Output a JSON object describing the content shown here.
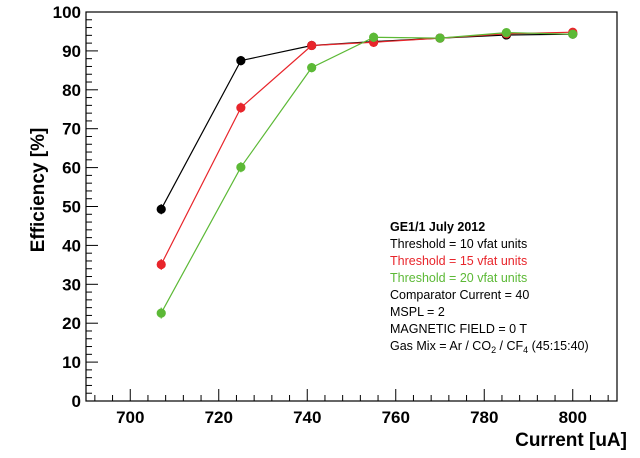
{
  "chart_data": {
    "type": "line",
    "xlabel": "Current [uA]",
    "ylabel": "Efficiency [%]",
    "xlim": [
      690,
      810
    ],
    "ylim": [
      0,
      100
    ],
    "x_ticks": [
      700,
      720,
      740,
      760,
      780,
      800
    ],
    "y_ticks": [
      0,
      10,
      20,
      30,
      40,
      50,
      60,
      70,
      80,
      90,
      100
    ],
    "grid": false,
    "series": [
      {
        "name": "Threshold = 10 vfat units",
        "color": "#000000",
        "x": [
          707,
          725,
          741,
          755,
          770,
          785,
          800
        ],
        "y": [
          49.3,
          87.5,
          91.4,
          92.4,
          93.3,
          94.1,
          94.3
        ],
        "err": [
          1.3,
          1.2,
          1.0,
          1.0,
          0.8,
          0.8,
          0.8
        ]
      },
      {
        "name": "Threshold = 15 vfat units",
        "color": "#e8252b",
        "x": [
          707,
          725,
          741,
          755,
          770,
          785,
          800
        ],
        "y": [
          35.1,
          75.4,
          91.4,
          92.2,
          93.3,
          94.4,
          94.8
        ],
        "err": [
          1.4,
          1.3,
          1.2,
          1.2,
          0.8,
          0.8,
          0.8
        ]
      },
      {
        "name": "Threshold = 20 vfat units",
        "color": "#5cb936",
        "x": [
          707,
          725,
          741,
          755,
          770,
          785,
          800
        ],
        "y": [
          22.6,
          60.1,
          85.7,
          93.5,
          93.3,
          94.7,
          94.3
        ],
        "err": [
          1.4,
          1.3,
          1.2,
          1.2,
          0.8,
          0.8,
          0.8
        ]
      }
    ],
    "legend": {
      "placement": "center-right",
      "title": "GE1/1 July 2012",
      "notes": [
        "Comparator Current = 40",
        "MSPL = 2",
        "MAGNETIC FIELD = 0 T"
      ],
      "gas_mix": {
        "prefix": "Gas Mix = Ar / CO",
        "co2_sub": "2",
        "mid": " / CF",
        "cf4_sub": "4",
        "suffix": " (45:15:40)"
      }
    }
  }
}
